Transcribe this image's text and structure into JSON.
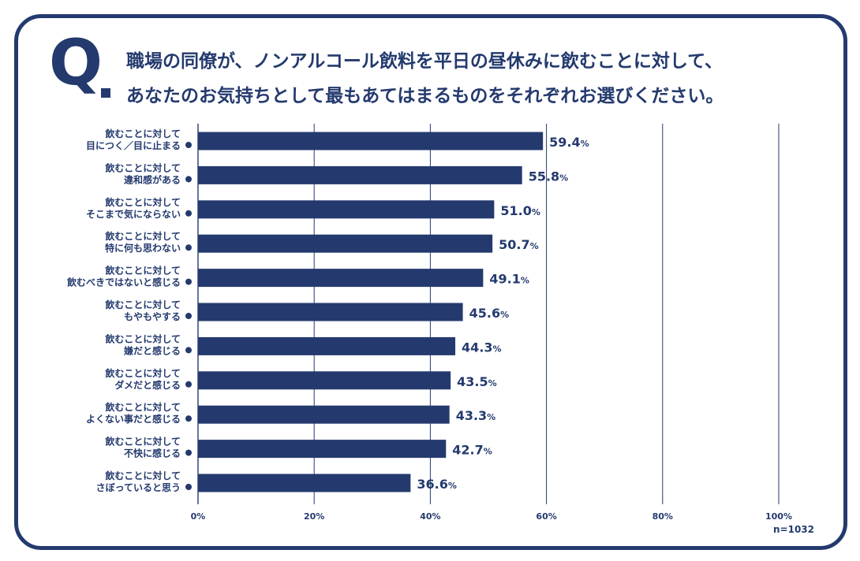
{
  "question": {
    "mark": "Q",
    "line1": "職場の同僚が、ノンアルコール飲料を平日の昼休みに飲むことに対して、",
    "line2": "あなたのお気持ちとして最もあてはまるものをそれぞれお選びください。"
  },
  "sample_size": "n=1032",
  "colors": {
    "bar": "#243a6e",
    "frame": "#243a6e",
    "grid": "#243a6e",
    "text": "#243a6e"
  },
  "chart_data": {
    "type": "bar",
    "orientation": "horizontal",
    "categories": [
      [
        "飲むことに対して",
        "目につく／目に止まる"
      ],
      [
        "飲むことに対して",
        "違和感がある"
      ],
      [
        "飲むことに対して",
        "そこまで気にならない"
      ],
      [
        "飲むことに対して",
        "特に何も思わない"
      ],
      [
        "飲むことに対して",
        "飲むべきではないと感じる"
      ],
      [
        "飲むことに対して",
        "もやもやする"
      ],
      [
        "飲むことに対して",
        "嫌だと感じる"
      ],
      [
        "飲むことに対して",
        "ダメだと感じる"
      ],
      [
        "飲むことに対して",
        "よくない事だと感じる"
      ],
      [
        "飲むことに対して",
        "不快に感じる"
      ],
      [
        "飲むことに対して",
        "さぼっていると思う"
      ]
    ],
    "values": [
      59.4,
      55.8,
      51.0,
      50.7,
      49.1,
      45.6,
      44.3,
      43.5,
      43.3,
      42.7,
      36.6
    ],
    "value_labels": [
      "59.4",
      "55.8",
      "51.0",
      "50.7",
      "49.1",
      "45.6",
      "44.3",
      "43.5",
      "43.3",
      "42.7",
      "36.6"
    ],
    "value_suffix": "%",
    "xlim": [
      0,
      100
    ],
    "xticks": [
      0,
      20,
      40,
      60,
      80,
      100
    ],
    "xtick_labels": [
      "0%",
      "20%",
      "40%",
      "60%",
      "80%",
      "100%"
    ],
    "grid": true,
    "legend": "none"
  }
}
